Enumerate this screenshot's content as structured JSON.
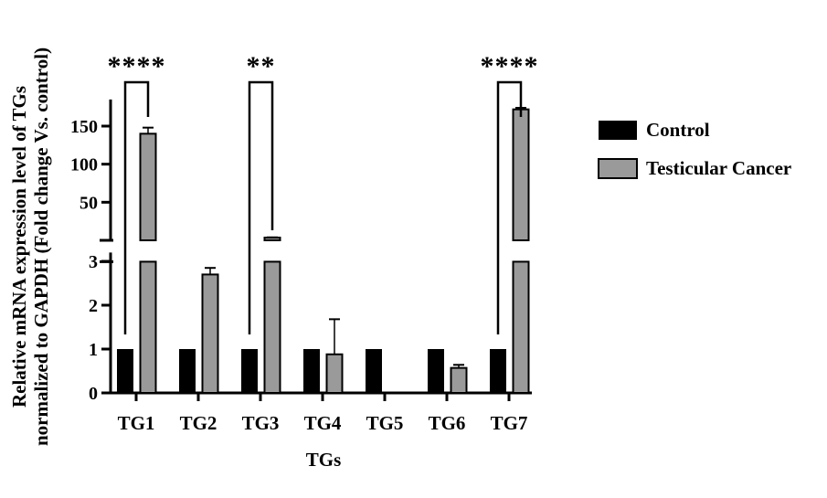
{
  "chart_data": {
    "type": "bar",
    "xlabel": "TGs",
    "ylabel_lines": [
      "Relative mRNA expression level of TGs",
      "normalized to GAPDH (Fold change Vs. control)"
    ],
    "categories": [
      "TG1",
      "TG2",
      "TG3",
      "TG4",
      "TG5",
      "TG6",
      "TG7"
    ],
    "series": [
      {
        "name": "Control",
        "color": "#000000",
        "values": [
          1,
          1,
          1,
          1,
          1,
          1,
          1
        ],
        "errors": [
          0,
          0,
          0,
          0,
          0,
          0,
          0
        ]
      },
      {
        "name": "Testicular Cancer",
        "color": "#9a9a9a",
        "values": [
          140,
          2.7,
          3.6,
          0.88,
          0,
          0.57,
          172
        ],
        "errors": [
          8,
          0.15,
          0.3,
          0.8,
          0,
          0.07,
          2
        ]
      }
    ],
    "y_axis_broken": true,
    "y_lower_range": [
      0,
      3.2
    ],
    "y_lower_ticks": [
      "0",
      "1",
      "2",
      "3"
    ],
    "y_upper_range": [
      0,
      185
    ],
    "y_upper_ticks": [
      "50",
      "100",
      "150"
    ],
    "significance": [
      {
        "category": "TG1",
        "label": "****"
      },
      {
        "category": "TG3",
        "label": "**"
      },
      {
        "category": "TG7",
        "label": "****"
      }
    ],
    "legend_position": "right",
    "grid": false
  }
}
